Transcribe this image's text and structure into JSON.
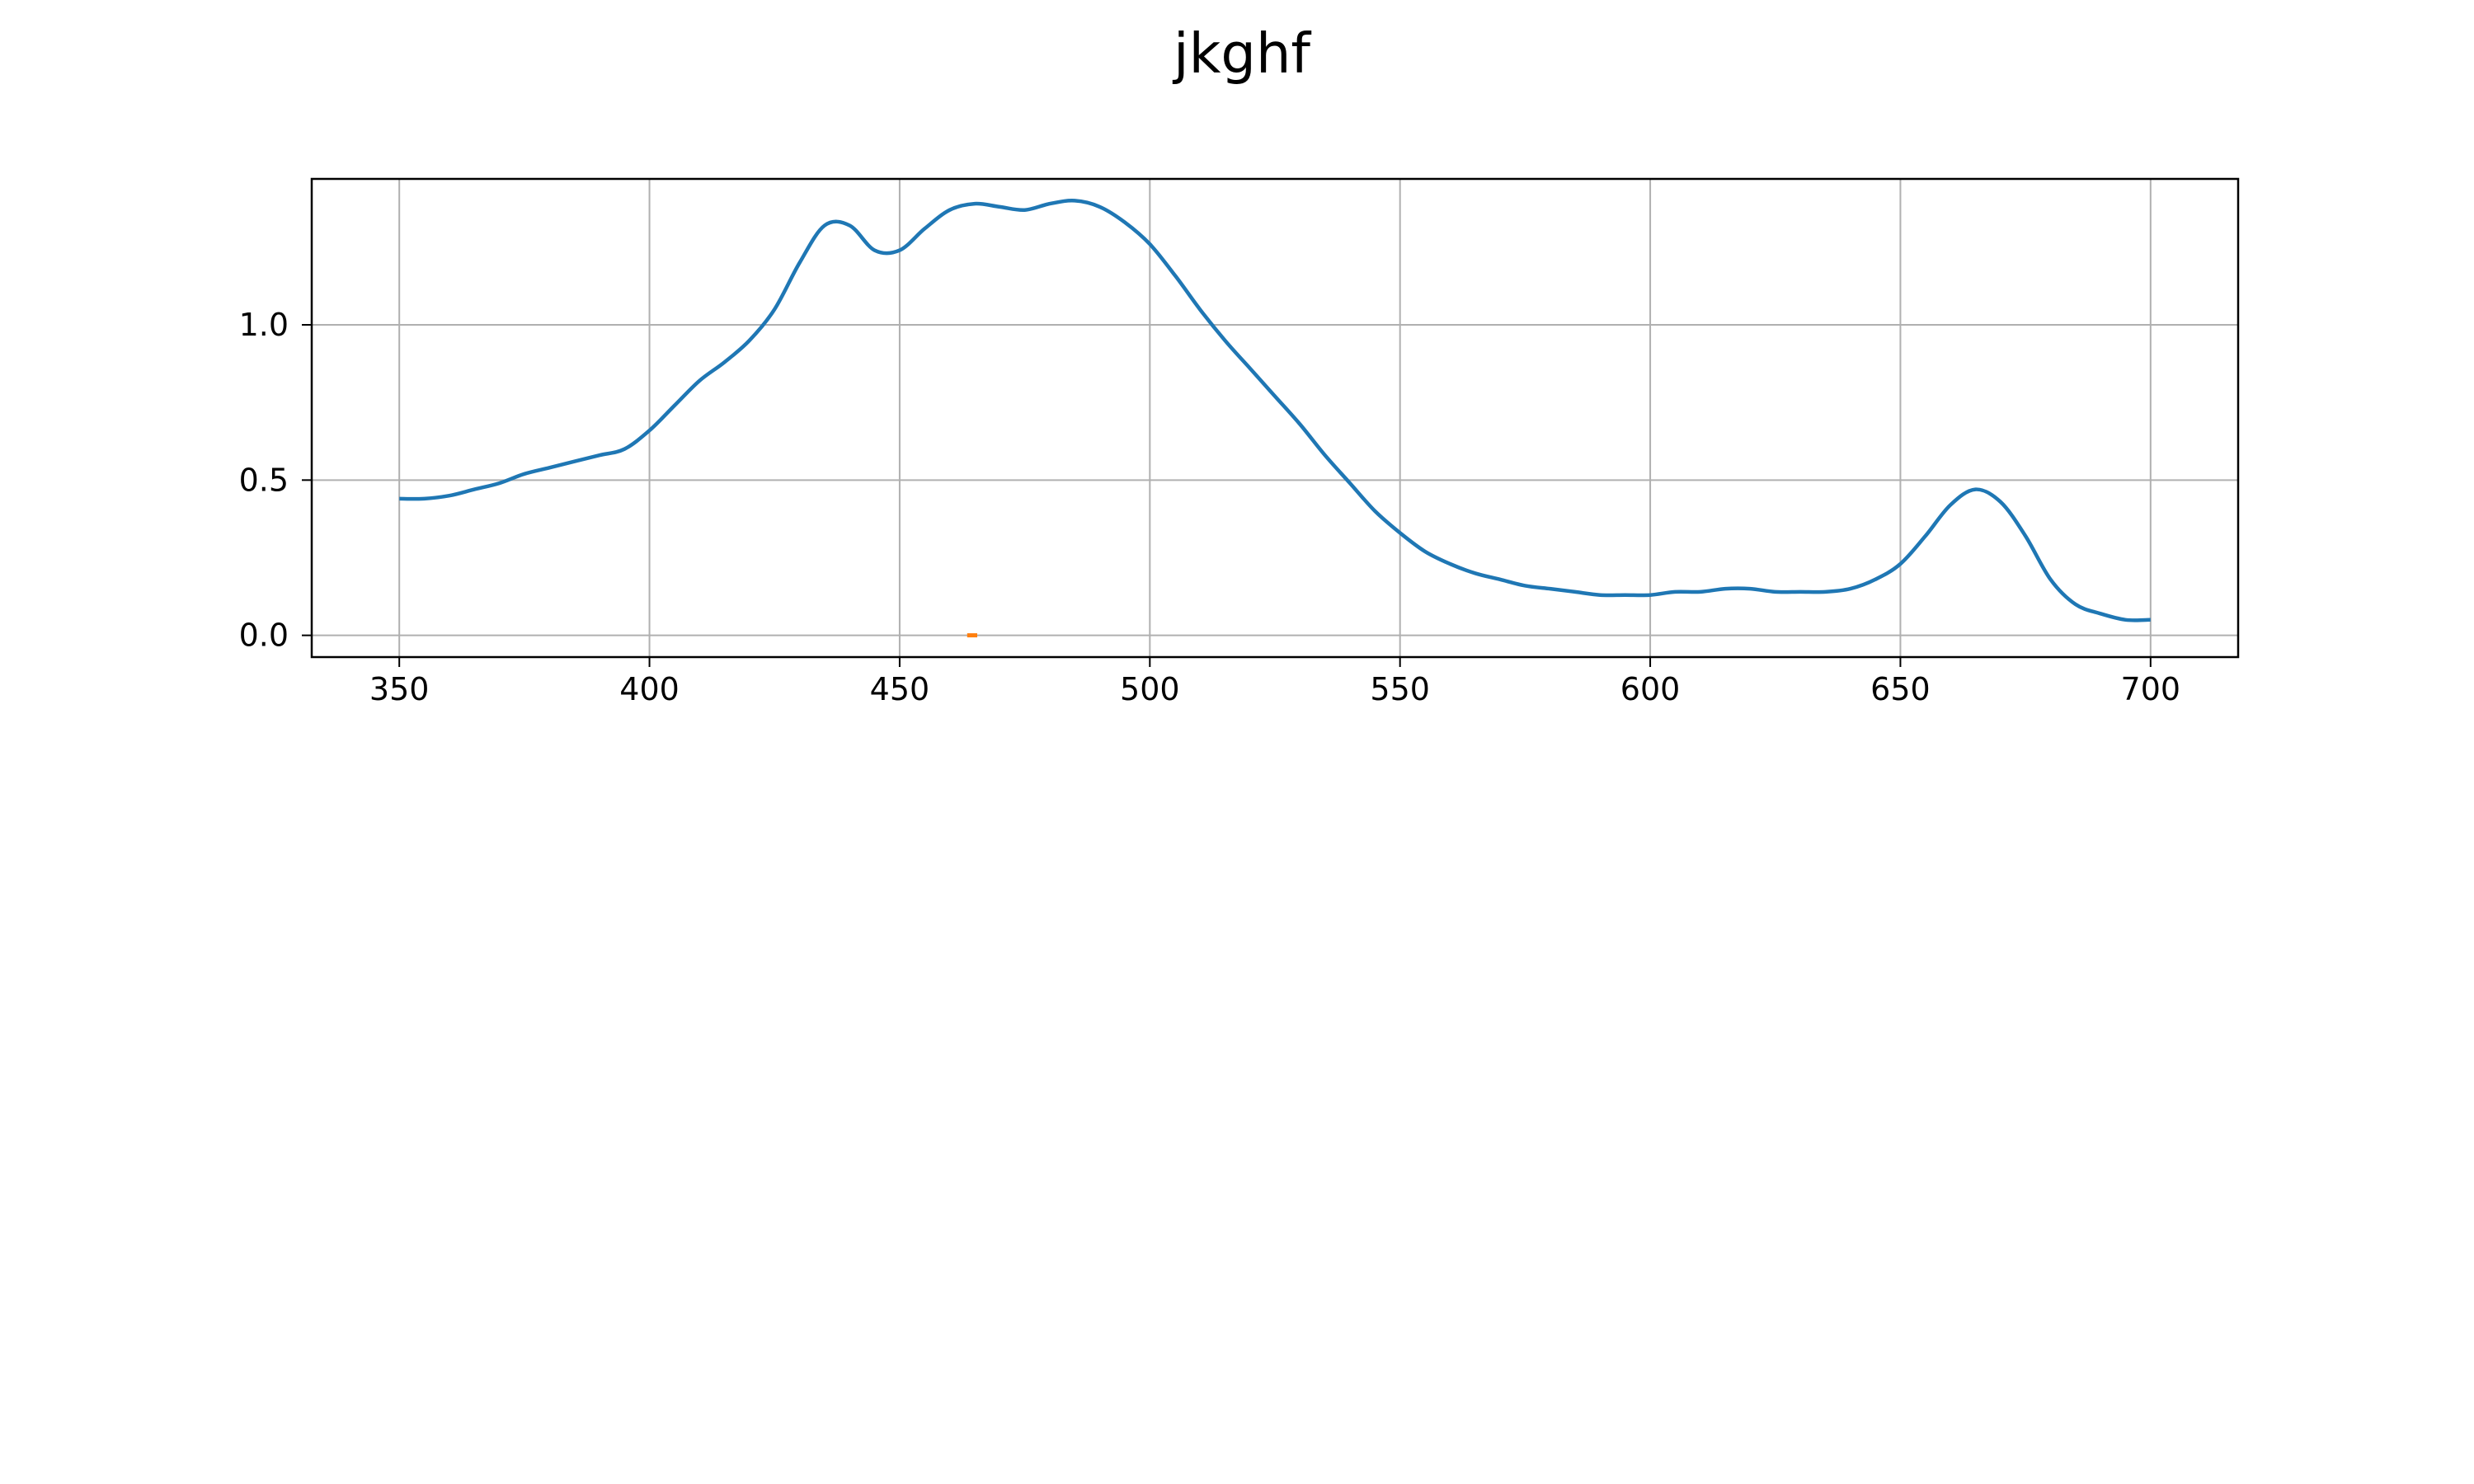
{
  "chart_data": {
    "type": "line",
    "title": "jkghf",
    "xlabel": "",
    "ylabel": "",
    "xlim": [
      332.5,
      717.5
    ],
    "ylim": [
      -0.07,
      1.47
    ],
    "xticks": [
      350,
      400,
      450,
      500,
      550,
      600,
      650,
      700
    ],
    "yticks": [
      0.0,
      0.5,
      1.0
    ],
    "xtick_labels": [
      "350",
      "400",
      "450",
      "500",
      "550",
      "600",
      "650",
      "700"
    ],
    "ytick_labels": [
      "0.0",
      "0.5",
      "1.0"
    ],
    "grid": true,
    "legend": false,
    "series": [
      {
        "color": "#1f77b4",
        "style": "line",
        "x": [
          350,
          355,
          360,
          365,
          370,
          375,
          380,
          385,
          390,
          395,
          400,
          405,
          410,
          415,
          420,
          425,
          430,
          435,
          440,
          445,
          450,
          455,
          460,
          465,
          470,
          475,
          480,
          485,
          490,
          495,
          500,
          505,
          510,
          515,
          520,
          525,
          530,
          535,
          540,
          545,
          550,
          555,
          560,
          565,
          570,
          575,
          580,
          585,
          590,
          595,
          600,
          605,
          610,
          615,
          620,
          625,
          630,
          635,
          640,
          645,
          650,
          655,
          660,
          665,
          670,
          675,
          680,
          685,
          690,
          695,
          700
        ],
        "y": [
          0.44,
          0.44,
          0.45,
          0.47,
          0.49,
          0.52,
          0.54,
          0.56,
          0.58,
          0.6,
          0.66,
          0.74,
          0.82,
          0.88,
          0.95,
          1.05,
          1.2,
          1.32,
          1.32,
          1.24,
          1.24,
          1.31,
          1.37,
          1.39,
          1.38,
          1.37,
          1.39,
          1.4,
          1.38,
          1.33,
          1.26,
          1.16,
          1.05,
          0.95,
          0.86,
          0.77,
          0.68,
          0.58,
          0.49,
          0.4,
          0.33,
          0.27,
          0.23,
          0.2,
          0.18,
          0.16,
          0.15,
          0.14,
          0.13,
          0.13,
          0.13,
          0.14,
          0.14,
          0.15,
          0.15,
          0.14,
          0.14,
          0.14,
          0.15,
          0.18,
          0.23,
          0.32,
          0.42,
          0.47,
          0.43,
          0.32,
          0.18,
          0.1,
          0.07,
          0.05,
          0.05
        ]
      },
      {
        "color": "#ff7f0e",
        "style": "line",
        "x": [
          463.5,
          465.5
        ],
        "y": [
          0.0,
          0.0
        ]
      }
    ]
  }
}
